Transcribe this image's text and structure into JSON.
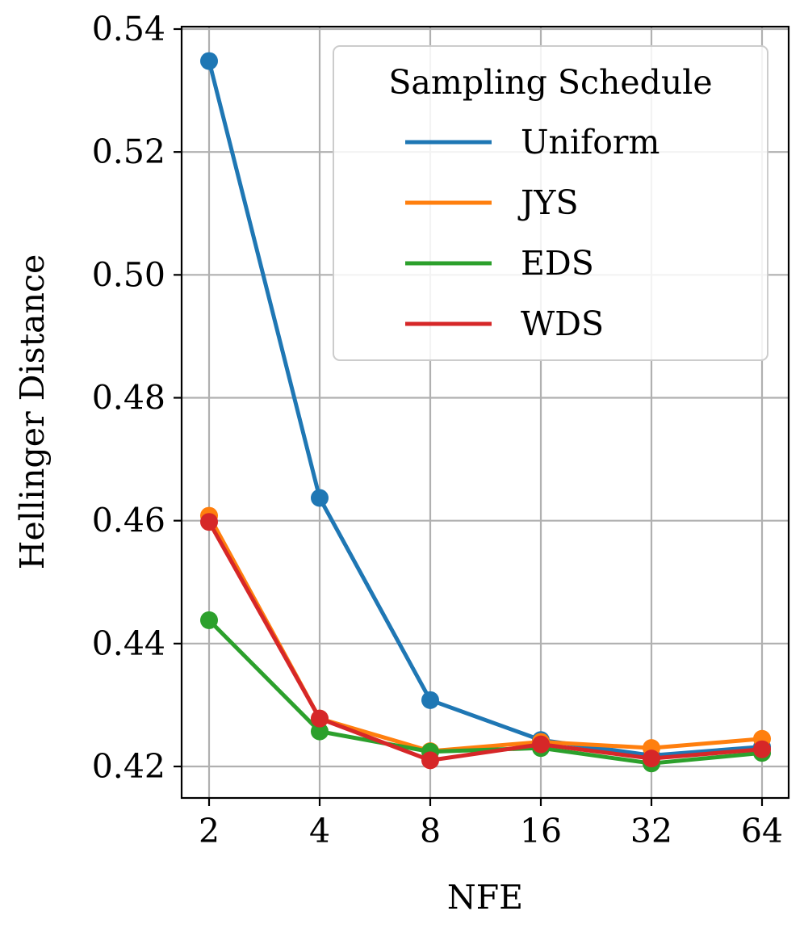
{
  "chart_data": {
    "type": "line",
    "title": "",
    "xlabel": "NFE",
    "ylabel": "Hellinger Distance",
    "x_scale": "log2",
    "categories": [
      "2",
      "4",
      "8",
      "16",
      "32",
      "64"
    ],
    "x": [
      2,
      4,
      8,
      16,
      32,
      64
    ],
    "ylim": [
      0.415,
      0.5405
    ],
    "y_ticks": [
      0.42,
      0.44,
      0.46,
      0.48,
      0.5,
      0.52,
      0.54
    ],
    "y_tick_labels": [
      "0.42",
      "0.44",
      "0.46",
      "0.48",
      "0.50",
      "0.52",
      "0.54"
    ],
    "grid": true,
    "legend": {
      "title": "Sampling Schedule",
      "placement": "top-right"
    },
    "series": [
      {
        "name": "Uniform",
        "color": "#1f77b4",
        "values": [
          0.5348,
          0.4637,
          0.4308,
          0.4243,
          0.4218,
          0.4232
        ]
      },
      {
        "name": "JYS",
        "color": "#ff7f0e",
        "values": [
          0.4608,
          0.4278,
          0.4225,
          0.424,
          0.423,
          0.4245
        ]
      },
      {
        "name": "EDS",
        "color": "#2ca02c",
        "values": [
          0.4438,
          0.4257,
          0.4224,
          0.423,
          0.4205,
          0.4222
        ]
      },
      {
        "name": "WDS",
        "color": "#d62728",
        "values": [
          0.4598,
          0.4278,
          0.421,
          0.4236,
          0.4213,
          0.4228
        ]
      }
    ]
  }
}
